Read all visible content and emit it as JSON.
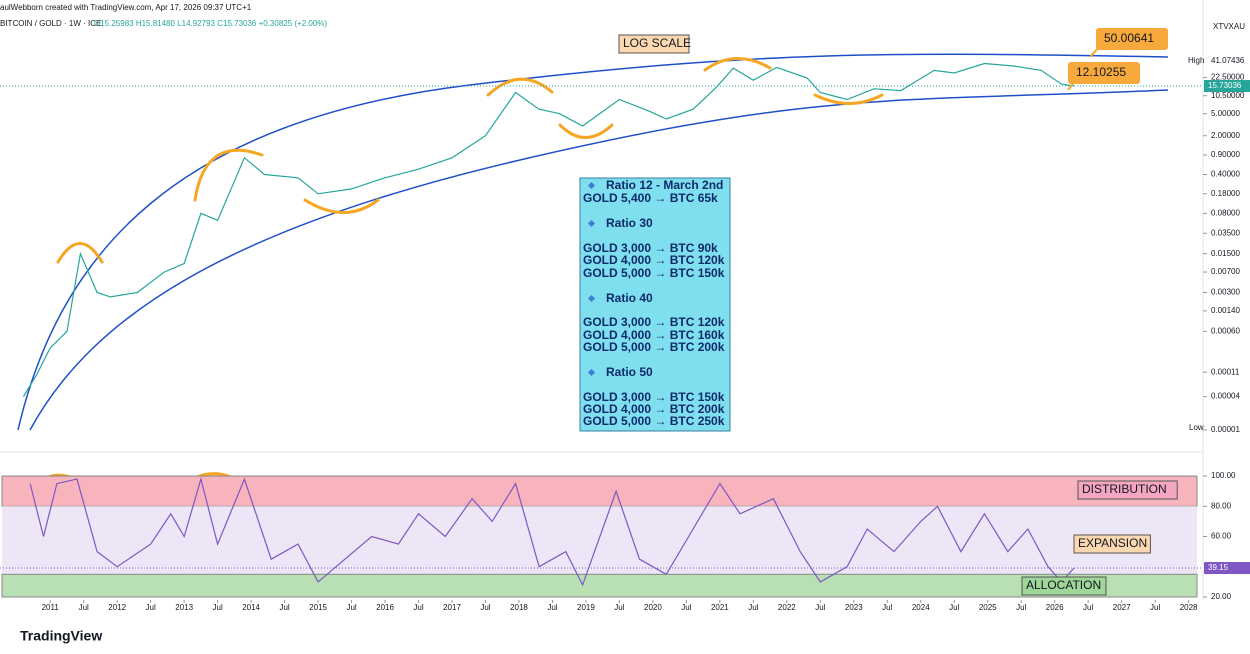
{
  "header": {
    "credit": "aulWebborn created with TradingView.com, Apr 17, 2026 09:37 UTC+1",
    "symbol": "BITCOIN / GOLD · 1W · ICE",
    "ohlc": "O15.25983 H15.81480 L14.92793 C15.73036 +0.30825 (+2.00%)",
    "ticker": "XTVXAU",
    "brand": "TradingView"
  },
  "chart_data": [
    {
      "type": "line",
      "log_scale": true,
      "color": "#26a69a",
      "x": [
        2010.6,
        2010.8,
        2011.0,
        2011.25,
        2011.45,
        2011.7,
        2011.9,
        2012.3,
        2012.7,
        2013.0,
        2013.25,
        2013.5,
        2013.9,
        2014.2,
        2014.7,
        2015.0,
        2015.5,
        2016.0,
        2016.5,
        2017.0,
        2017.5,
        2017.95,
        2018.3,
        2018.6,
        2018.95,
        2019.5,
        2019.95,
        2020.2,
        2020.6,
        2020.95,
        2021.2,
        2021.5,
        2021.85,
        2022.3,
        2022.5,
        2022.9,
        2023.3,
        2023.7,
        2024.2,
        2024.5,
        2024.95,
        2025.4,
        2025.8,
        2026.1,
        2026.29
      ],
      "values": [
        4e-05,
        0.0001,
        0.0003,
        0.0006,
        0.015,
        0.003,
        0.0025,
        0.003,
        0.007,
        0.01,
        0.08,
        0.06,
        0.8,
        0.4,
        0.35,
        0.18,
        0.22,
        0.35,
        0.5,
        0.8,
        2.0,
        12,
        6,
        5,
        3,
        9,
        5.5,
        4,
        6,
        15,
        33,
        20,
        34,
        22,
        12,
        9,
        14,
        13,
        30,
        27,
        40,
        36,
        30,
        17,
        15.73036
      ],
      "xlim": [
        2010.25,
        2028.17
      ],
      "ylim": [
        1e-05,
        400
      ],
      "yticks": [
        {
          "value": 22.5,
          "label": "22.50000"
        },
        {
          "value": 10.5,
          "label": "10.50000"
        },
        {
          "value": 5,
          "label": "5.00000"
        },
        {
          "value": 2,
          "label": "2.00000"
        },
        {
          "value": 0.9,
          "label": "0.90000"
        },
        {
          "value": 0.4,
          "label": "0.40000"
        },
        {
          "value": 0.18,
          "label": "0.18000"
        },
        {
          "value": 0.08,
          "label": "0.08000"
        },
        {
          "value": 0.035,
          "label": "0.03500"
        },
        {
          "value": 0.015,
          "label": "0.01500"
        },
        {
          "value": 0.007,
          "label": "0.00700"
        },
        {
          "value": 0.003,
          "label": "0.00300"
        },
        {
          "value": 0.0014,
          "label": "0.00140"
        },
        {
          "value": 0.0006,
          "label": "0.00060"
        },
        {
          "value": 0.00011,
          "label": "0.00011"
        },
        {
          "value": 4e-05,
          "label": "0.00004"
        },
        {
          "value": 1e-05,
          "label": "0.00001"
        }
      ],
      "annotations": {
        "title_box": "LOG SCALE",
        "upper_target": "50.00641",
        "lower_target": "12.10255",
        "high_label": "High",
        "high_value": "41.07436",
        "low_label": "Low"
      },
      "notes": [
        {
          "heading": "Ratio 12 - March 2nd",
          "lines": [
            "GOLD 5,400 → BTC 65k"
          ]
        },
        {
          "heading": "Ratio 30",
          "lines": [
            "GOLD 3,000 → BTC 90k",
            "GOLD 4,000 → BTC 120k",
            "GOLD 5,000 → BTC 150k"
          ]
        },
        {
          "heading": "Ratio 40",
          "lines": [
            "GOLD 3,000 → BTC 120k",
            "GOLD 4,000 → BTC 160k",
            "GOLD 5,000 → BTC 200k"
          ]
        },
        {
          "heading": "Ratio 50",
          "lines": [
            "GOLD 3,000 → BTC 150k",
            "GOLD 4,000 → BTC 200k",
            "GOLD 5,000 → BTC 250k"
          ]
        }
      ]
    },
    {
      "type": "line",
      "color": "#7e57c2",
      "x": [
        2010.7,
        2010.9,
        2011.1,
        2011.4,
        2011.7,
        2012.0,
        2012.5,
        2012.8,
        2013.0,
        2013.25,
        2013.5,
        2013.9,
        2014.3,
        2014.7,
        2015.0,
        2015.4,
        2015.8,
        2016.2,
        2016.5,
        2016.9,
        2017.3,
        2017.6,
        2017.95,
        2018.3,
        2018.7,
        2018.95,
        2019.45,
        2019.8,
        2020.2,
        2020.6,
        2021.0,
        2021.3,
        2021.8,
        2022.2,
        2022.5,
        2022.9,
        2023.2,
        2023.6,
        2024.0,
        2024.25,
        2024.6,
        2024.95,
        2025.3,
        2025.6,
        2025.9,
        2026.1,
        2026.29
      ],
      "values": [
        95,
        60,
        95,
        98,
        50,
        40,
        55,
        75,
        60,
        98,
        55,
        98,
        45,
        55,
        30,
        45,
        60,
        55,
        75,
        60,
        85,
        70,
        95,
        40,
        50,
        28,
        90,
        45,
        35,
        65,
        95,
        75,
        85,
        50,
        30,
        40,
        65,
        50,
        70,
        80,
        50,
        75,
        50,
        65,
        40,
        30,
        39.15
      ],
      "xlim": [
        2010.25,
        2028.17
      ],
      "ylim": [
        18,
        104
      ],
      "yticks": [
        {
          "value": 100,
          "label": "100.00"
        },
        {
          "value": 80,
          "label": "80.00"
        },
        {
          "value": 60,
          "label": "60.00"
        },
        {
          "value": 20,
          "label": "20.00"
        }
      ],
      "zones": [
        {
          "label": "DISTRIBUTION",
          "range": [
            80,
            100
          ],
          "color": "#f8b4bc"
        },
        {
          "label": "EXPANSION",
          "range": [
            35,
            80
          ],
          "color": "#ede6f7"
        },
        {
          "label": "ALLOCATION",
          "range": [
            20,
            35
          ],
          "color": "#b9e0b4"
        }
      ],
      "xticks": [
        2011,
        {
          "value": 2011.5,
          "label": "Jul"
        },
        2012,
        {
          "value": 2012.5,
          "label": "Jul"
        },
        2013,
        {
          "value": 2013.5,
          "label": "Jul"
        },
        2014,
        {
          "value": 2014.5,
          "label": "Jul"
        },
        2015,
        {
          "value": 2015.5,
          "label": "Jul"
        },
        2016,
        {
          "value": 2016.5,
          "label": "Jul"
        },
        2017,
        {
          "value": 2017.5,
          "label": "Jul"
        },
        2018,
        {
          "value": 2018.5,
          "label": "Jul"
        },
        2019,
        {
          "value": 2019.5,
          "label": "Jul"
        },
        2020,
        {
          "value": 2020.5,
          "label": "Jul"
        },
        2021,
        {
          "value": 2021.5,
          "label": "Jul"
        },
        2022,
        {
          "value": 2022.5,
          "label": "Jul"
        },
        2023,
        {
          "value": 2023.5,
          "label": "Jul"
        },
        2024,
        {
          "value": 2024.5,
          "label": "Jul"
        },
        2025,
        {
          "value": 2025.5,
          "label": "Jul"
        },
        2026,
        {
          "value": 2026.5,
          "label": "Jul"
        },
        2027,
        {
          "value": 2027.5,
          "label": "Jul"
        },
        2028
      ]
    }
  ]
}
